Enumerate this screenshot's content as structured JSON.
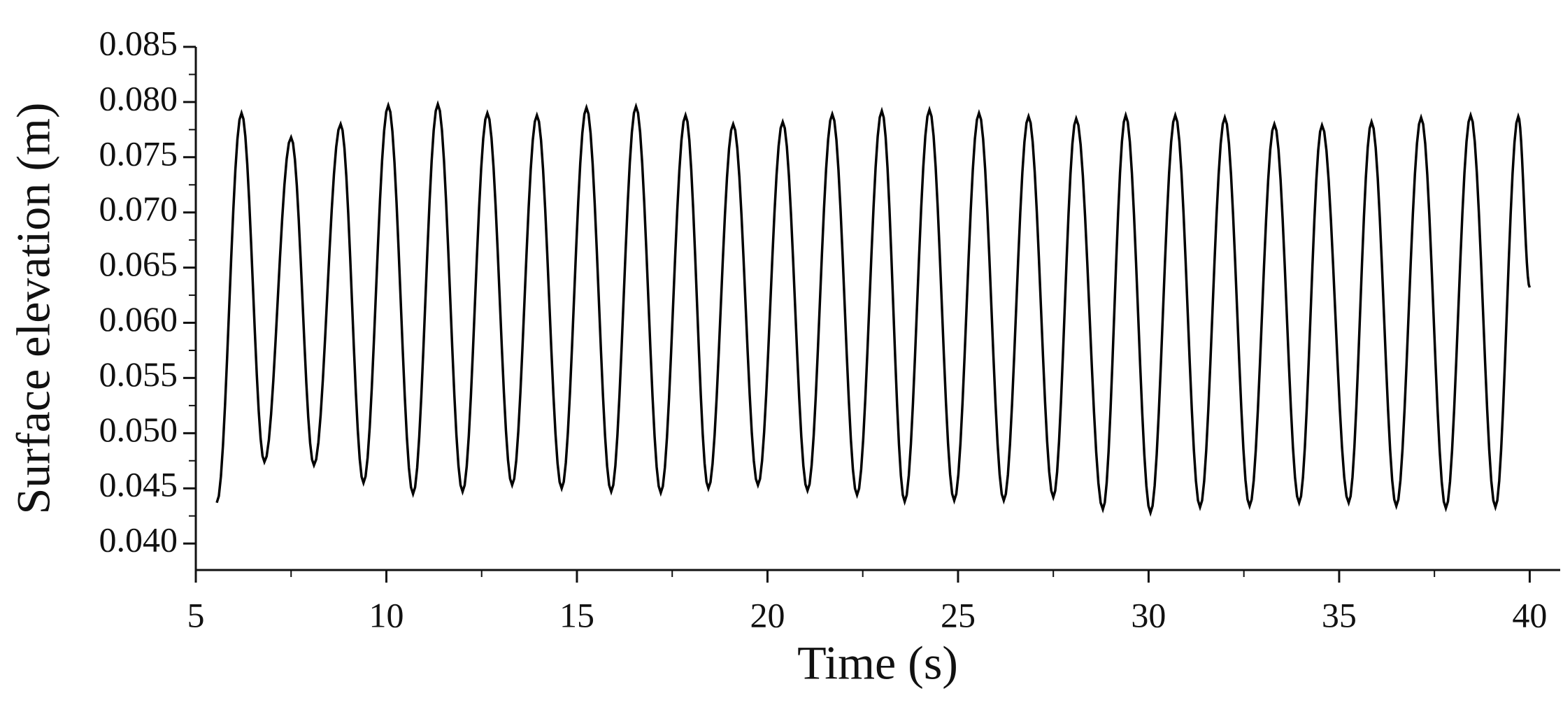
{
  "chart_data": {
    "type": "line",
    "xlabel": "Time (s)",
    "ylabel": "Surface elevation (m)",
    "xlim": [
      5,
      40.8
    ],
    "ylim": [
      0.0376,
      0.085
    ],
    "xticks": [
      5,
      10,
      15,
      20,
      25,
      30,
      35,
      40
    ],
    "yticks": [
      {
        "value": 0.04,
        "label": "0.040"
      },
      0.045,
      {
        "value": 0.05,
        "label": "0.050"
      },
      0.055,
      {
        "value": 0.06,
        "label": "0.060"
      },
      0.065,
      {
        "value": 0.07,
        "label": "0.070"
      },
      0.075,
      {
        "value": 0.08,
        "label": "0.080"
      },
      0.085
    ],
    "x": [
      5.55,
      6.2,
      6.8,
      7.5,
      8.1,
      8.8,
      9.4,
      10.05,
      10.7,
      11.35,
      12.0,
      12.65,
      13.3,
      13.95,
      14.6,
      15.25,
      15.9,
      16.55,
      17.2,
      17.85,
      18.45,
      19.1,
      19.75,
      20.4,
      21.05,
      21.7,
      22.35,
      23.0,
      23.6,
      24.25,
      24.9,
      25.55,
      26.2,
      26.85,
      27.5,
      28.1,
      28.8,
      29.4,
      30.05,
      30.7,
      31.35,
      32.0,
      32.65,
      33.3,
      33.95,
      34.55,
      35.25,
      35.85,
      36.5,
      37.15,
      37.8,
      38.45,
      39.1,
      39.7,
      40.0
    ],
    "series": [
      {
        "color": "#000000",
        "values": [
          0.0437,
          0.079,
          0.0474,
          0.0768,
          0.0471,
          0.078,
          0.0455,
          0.0797,
          0.0445,
          0.0798,
          0.0447,
          0.079,
          0.0453,
          0.0788,
          0.045,
          0.0795,
          0.0447,
          0.0796,
          0.0446,
          0.0788,
          0.045,
          0.078,
          0.0453,
          0.0782,
          0.0448,
          0.0789,
          0.0444,
          0.0792,
          0.0438,
          0.0793,
          0.0439,
          0.079,
          0.0439,
          0.0787,
          0.0442,
          0.0785,
          0.0431,
          0.0788,
          0.0428,
          0.0788,
          0.0433,
          0.0786,
          0.0434,
          0.078,
          0.0437,
          0.0779,
          0.0437,
          0.0782,
          0.0434,
          0.0786,
          0.0432,
          0.0788,
          0.0433,
          0.0787,
          0.0632
        ]
      }
    ]
  }
}
